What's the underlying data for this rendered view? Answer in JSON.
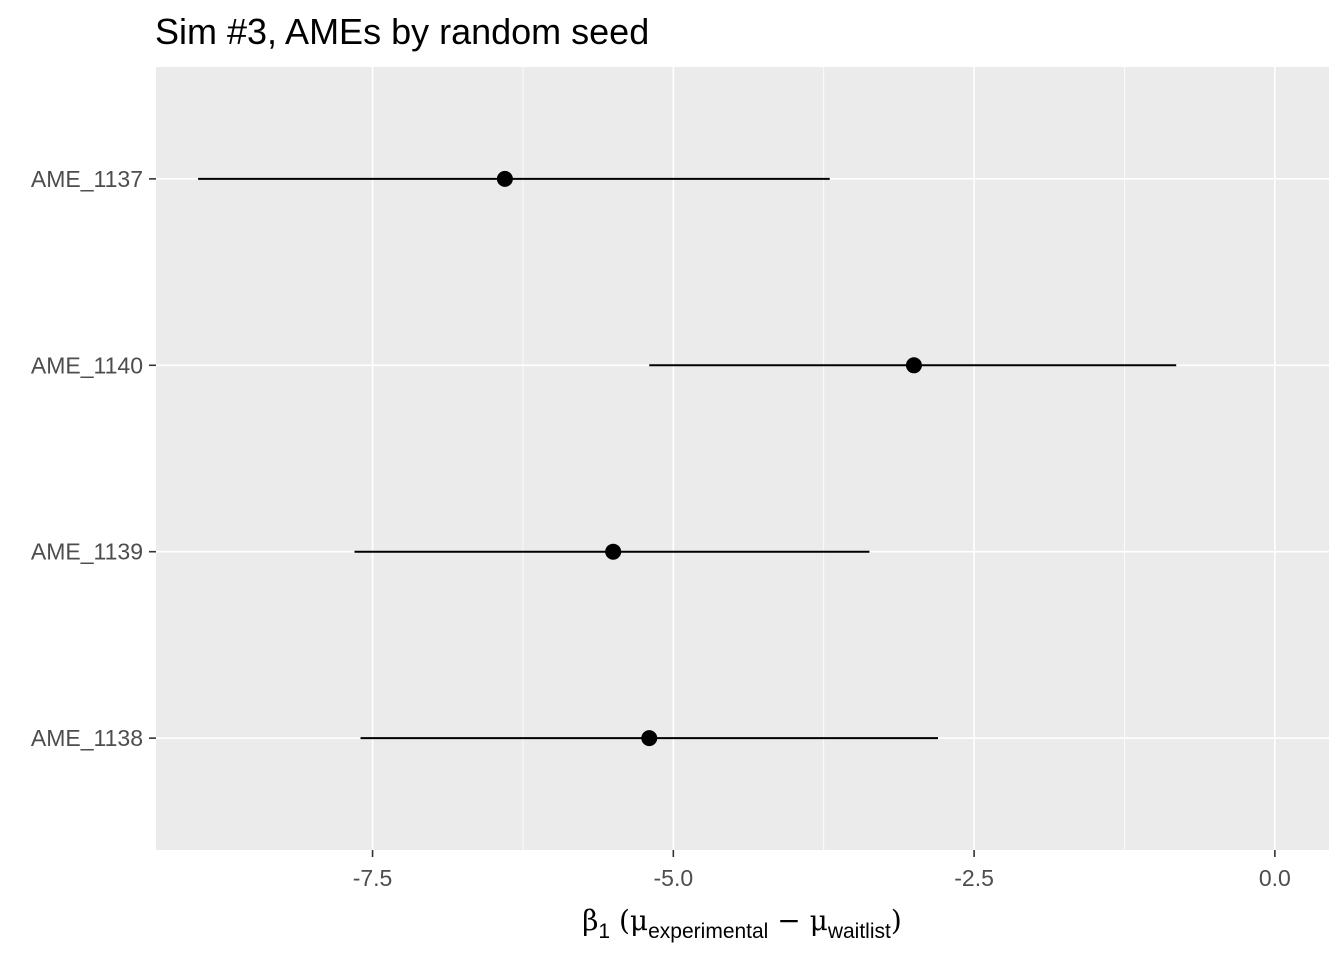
{
  "chart_data": {
    "type": "pointrange",
    "title": "Sim #3, AMEs by random seed",
    "xlabel": {
      "beta": "β",
      "beta_sub": "1",
      "open": " (",
      "mu1": "μ",
      "mu1_sub": "experimental",
      "minus": " − ",
      "mu2": "μ",
      "mu2_sub": "waitlist",
      "close": ")"
    },
    "ylabel": "",
    "xlim": [
      -9.3,
      0.45
    ],
    "x_ticks": [
      -7.5,
      -5.0,
      -2.5,
      0.0
    ],
    "x_tick_labels": [
      "-7.5",
      "-5.0",
      "-2.5",
      "0.0"
    ],
    "categories": [
      "AME_1137",
      "AME_1140",
      "AME_1139",
      "AME_1138"
    ],
    "estimate": [
      -6.4,
      -3.0,
      -5.5,
      -5.2
    ],
    "lower": [
      -8.95,
      -5.2,
      -7.65,
      -7.6
    ],
    "upper": [
      -3.7,
      -0.82,
      -3.37,
      -2.8
    ],
    "background_color": "#ebebeb",
    "grid_color": "#ffffff",
    "point_color": "#000000"
  }
}
